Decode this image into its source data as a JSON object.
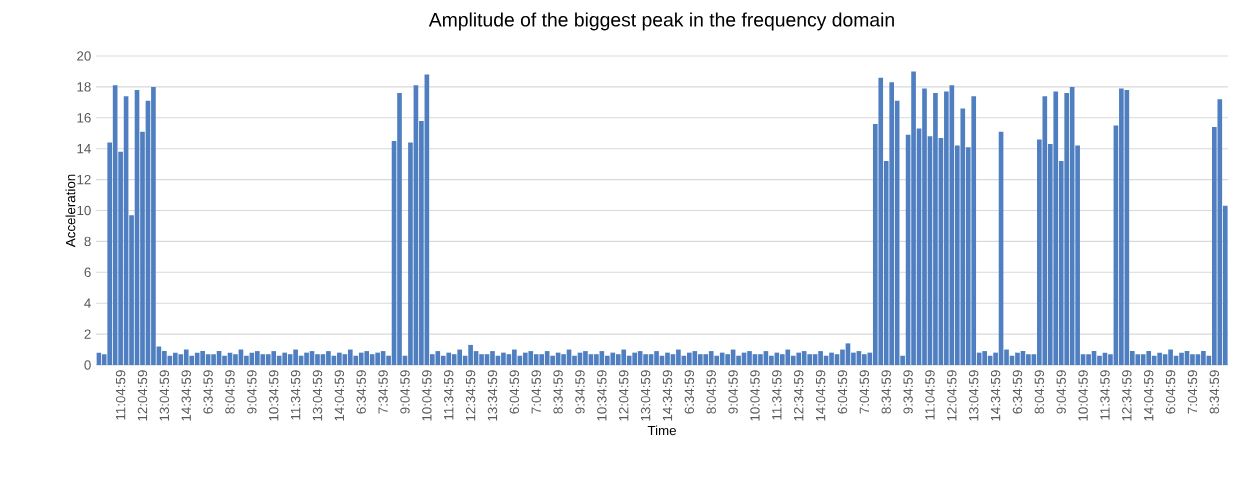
{
  "chart_data": {
    "type": "bar",
    "title": "Amplitude of the biggest peak in the frequency domain",
    "xlabel": "Time",
    "ylabel": "Acceleration",
    "categories": [
      null,
      null,
      null,
      null,
      "11:04:59",
      null,
      null,
      null,
      "12:04:59",
      null,
      null,
      null,
      "13:04:59",
      null,
      null,
      null,
      "14:34:59",
      null,
      null,
      null,
      "6:34:59",
      null,
      null,
      null,
      "8:04:59",
      null,
      null,
      null,
      "9:04:59",
      null,
      null,
      null,
      "10:34:59",
      null,
      null,
      null,
      "11:34:59",
      null,
      null,
      null,
      "13:04:59",
      null,
      null,
      null,
      "14:04:59",
      null,
      null,
      null,
      "6:34:59",
      null,
      null,
      null,
      "7:34:59",
      null,
      null,
      null,
      "9:04:59",
      null,
      null,
      null,
      "10:04:59",
      null,
      null,
      null,
      "11:34:59",
      null,
      null,
      null,
      "12:34:59",
      null,
      null,
      null,
      "13:34:59",
      null,
      null,
      null,
      "6:04:59",
      null,
      null,
      null,
      "7:04:59",
      null,
      null,
      null,
      "8:34:59",
      null,
      null,
      null,
      "9:34:59",
      null,
      null,
      null,
      "10:34:59",
      null,
      null,
      null,
      "12:04:59",
      null,
      null,
      null,
      "13:04:59",
      null,
      null,
      null,
      "14:34:59",
      null,
      null,
      null,
      "6:34:59",
      null,
      null,
      null,
      "8:04:59",
      null,
      null,
      null,
      "9:04:59",
      null,
      null,
      null,
      "10:04:59",
      null,
      null,
      null,
      "11:34:59",
      null,
      null,
      null,
      "12:34:59",
      null,
      null,
      null,
      "14:04:59",
      null,
      null,
      null,
      "6:04:59",
      null,
      null,
      null,
      "7:04:59",
      null,
      null,
      null,
      "8:34:59",
      null,
      null,
      null,
      "9:34:59",
      null,
      null,
      null,
      "11:04:59",
      null,
      null,
      null,
      "12:04:59",
      null,
      null,
      null,
      "13:04:59",
      null,
      null,
      null,
      "14:34:59",
      null,
      null,
      null,
      "6:34:59",
      null,
      null,
      null,
      "8:04:59",
      null,
      null,
      null,
      "9:04:59",
      null,
      null,
      null,
      "10:04:59",
      null,
      null,
      null,
      "11:34:59",
      null,
      null,
      null,
      "12:34:59",
      null,
      null,
      null,
      "14:04:59",
      null,
      null,
      null,
      "6:04:59",
      null,
      null,
      null,
      "7:04:59",
      null,
      null,
      null,
      "8:34:59",
      null,
      null
    ],
    "values": [
      0.8,
      0.7,
      14.4,
      18.1,
      13.8,
      17.4,
      9.7,
      17.8,
      15.1,
      17.1,
      18.0,
      1.2,
      0.9,
      0.6,
      0.8,
      0.7,
      1.0,
      0.6,
      0.8,
      0.9,
      0.7,
      0.7,
      0.9,
      0.6,
      0.8,
      0.7,
      1.0,
      0.6,
      0.8,
      0.9,
      0.7,
      0.7,
      0.9,
      0.6,
      0.8,
      0.7,
      1.0,
      0.6,
      0.8,
      0.9,
      0.7,
      0.7,
      0.9,
      0.6,
      0.8,
      0.7,
      1.0,
      0.6,
      0.8,
      0.9,
      0.7,
      0.8,
      0.9,
      0.6,
      14.5,
      17.6,
      0.6,
      14.4,
      18.1,
      15.8,
      18.8,
      0.7,
      0.9,
      0.6,
      0.8,
      0.7,
      1.0,
      0.6,
      1.3,
      0.9,
      0.7,
      0.7,
      0.9,
      0.6,
      0.8,
      0.7,
      1.0,
      0.6,
      0.8,
      0.9,
      0.7,
      0.7,
      0.9,
      0.6,
      0.8,
      0.7,
      1.0,
      0.6,
      0.8,
      0.9,
      0.7,
      0.7,
      0.9,
      0.6,
      0.8,
      0.7,
      1.0,
      0.6,
      0.8,
      0.9,
      0.7,
      0.7,
      0.9,
      0.6,
      0.8,
      0.7,
      1.0,
      0.6,
      0.8,
      0.9,
      0.7,
      0.7,
      0.9,
      0.6,
      0.8,
      0.7,
      1.0,
      0.6,
      0.8,
      0.9,
      0.7,
      0.7,
      0.9,
      0.6,
      0.8,
      0.7,
      1.0,
      0.6,
      0.8,
      0.9,
      0.7,
      0.7,
      0.9,
      0.6,
      0.8,
      0.7,
      1.0,
      1.4,
      0.8,
      0.9,
      0.7,
      0.8,
      15.6,
      18.6,
      13.2,
      18.3,
      17.1,
      0.6,
      14.9,
      19.0,
      15.3,
      17.9,
      14.8,
      17.6,
      14.7,
      17.7,
      18.1,
      14.2,
      16.6,
      14.1,
      17.4,
      0.8,
      0.9,
      0.6,
      0.8,
      15.1,
      1.0,
      0.6,
      0.8,
      0.9,
      0.7,
      0.7,
      14.6,
      17.4,
      14.3,
      17.7,
      13.2,
      17.6,
      18.0,
      14.2,
      0.7,
      0.7,
      0.9,
      0.6,
      0.8,
      0.7,
      15.5,
      17.9,
      17.8,
      0.9,
      0.7,
      0.7,
      0.9,
      0.6,
      0.8,
      0.7,
      1.0,
      0.6,
      0.8,
      0.9,
      0.7,
      0.7,
      0.9,
      0.6,
      15.4,
      17.2,
      10.3
    ],
    "color": "#4f7fc0",
    "ylim": [
      0,
      20
    ],
    "yticks": [
      0,
      2,
      4,
      6,
      8,
      10,
      12,
      14,
      16,
      18,
      20
    ],
    "grid": "y"
  }
}
